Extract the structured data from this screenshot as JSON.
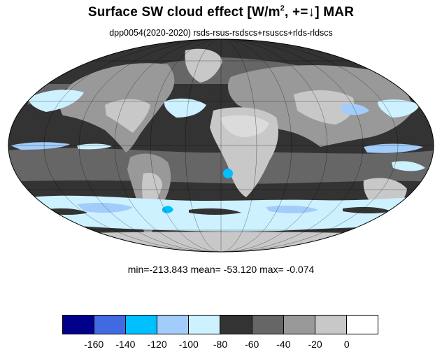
{
  "title": {
    "main": "Surface SW cloud effect [W/m",
    "superscript": "2",
    "tail": ", +=↓]  MAR"
  },
  "subtitle": "dpp0054(2020-2020)  rsds-rsus-rsdscs+rsuscs+rlds-rldscs",
  "stats": {
    "text": "min=-213.843   mean= -53.120  max=  -0.074",
    "min": -213.843,
    "mean": -53.12,
    "max": -0.074
  },
  "colorbar": {
    "colors": [
      "#00008b",
      "#4169e1",
      "#00bfff",
      "#a2cdfa",
      "#cdf1ff",
      "#333333",
      "#666666",
      "#999999",
      "#c8c8c8",
      "#ffffff"
    ],
    "tick_labels": [
      "-160",
      "-140",
      "-120",
      "-100",
      "-80",
      "-60",
      "-40",
      "-20",
      "0"
    ]
  },
  "map": {
    "projection": "Mollweide",
    "graticule": true,
    "fill_colors": {
      "ocean_base": "#333333",
      "land_light": "#c8c8c8",
      "mid_gray": "#666666",
      "gray": "#999999",
      "light_blue": "#cdf1ff",
      "sky_blue": "#a2cdfa",
      "bright_blue": "#00bfff"
    }
  }
}
